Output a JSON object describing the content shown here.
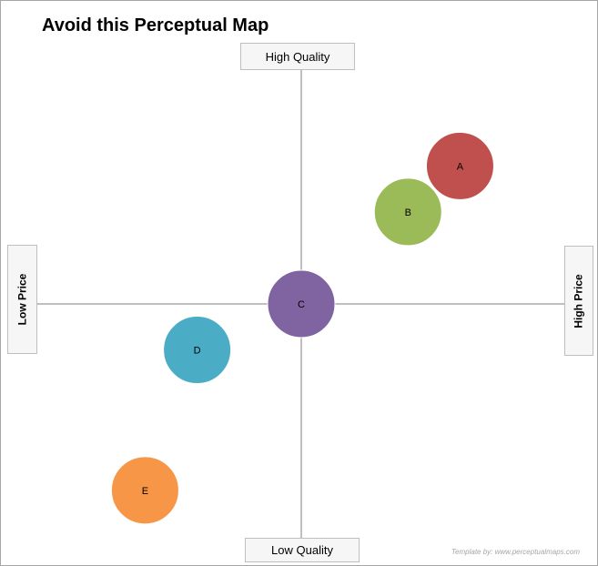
{
  "title": "Avoid this Perceptual Map",
  "axes": {
    "top": "High Quality",
    "bottom": "Low Quality",
    "left": "Low Price",
    "right": "High Price"
  },
  "watermark": "Template by: www.perceptualmaps.com",
  "chart_data": {
    "type": "scatter",
    "title": "Avoid this Perceptual Map",
    "xlabel_negative": "Low Price",
    "xlabel_positive": "High Price",
    "ylabel_negative": "Low Quality",
    "ylabel_positive": "High Quality",
    "xlim": [
      -10,
      10
    ],
    "ylim": [
      -10,
      10
    ],
    "grid": false,
    "points": [
      {
        "label": "A",
        "x": 6.1,
        "y": 5.7,
        "color": "#c0504d"
      },
      {
        "label": "B",
        "x": 4.1,
        "y": 3.8,
        "color": "#9bbb59"
      },
      {
        "label": "C",
        "x": 0.0,
        "y": 0.0,
        "color": "#8064a2"
      },
      {
        "label": "D",
        "x": -4.0,
        "y": -1.9,
        "color": "#4bacc6"
      },
      {
        "label": "E",
        "x": -6.0,
        "y": -7.7,
        "color": "#f79646"
      }
    ]
  }
}
